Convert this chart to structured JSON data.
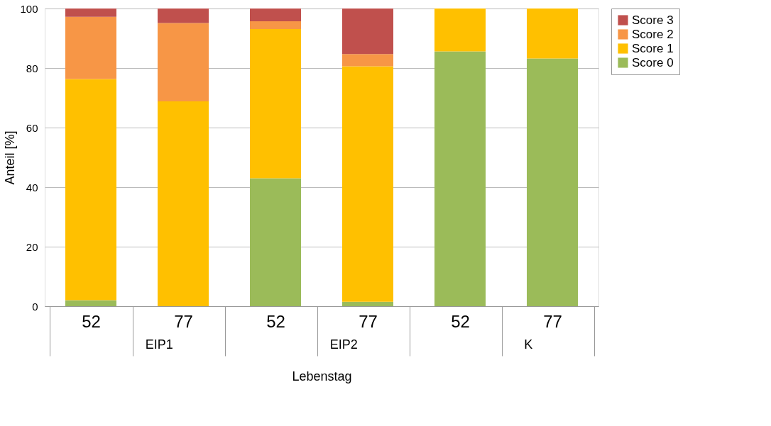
{
  "chart_data": {
    "type": "bar",
    "stacked": true,
    "xlabel": "Lebenstag",
    "ylabel": "Anteil [%]",
    "categories": [
      "52",
      "77",
      "52",
      "77",
      "52",
      "77"
    ],
    "series": [
      {
        "name": "Score 0",
        "color": "#9bbb59",
        "values": [
          2.0,
          0,
          43.0,
          1.5,
          85.6,
          83.2
        ]
      },
      {
        "name": "Score 1",
        "color": "#ffc000",
        "values": [
          74.3,
          68.8,
          50.1,
          79.1,
          14.4,
          16.8
        ]
      },
      {
        "name": "Score 2",
        "color": "#f79646",
        "values": [
          20.9,
          26.3,
          2.6,
          4.1,
          0,
          0
        ]
      },
      {
        "name": "Score 3",
        "color": "#c0504d",
        "values": [
          2.8,
          4.9,
          4.3,
          15.3,
          0,
          0
        ]
      }
    ],
    "annotations": [
      "EIP1",
      "EIP2",
      "K"
    ],
    "ylim": [
      0,
      100
    ],
    "yticks": [
      0,
      20,
      40,
      60,
      80,
      100
    ],
    "grid": "y",
    "legend": "right"
  }
}
